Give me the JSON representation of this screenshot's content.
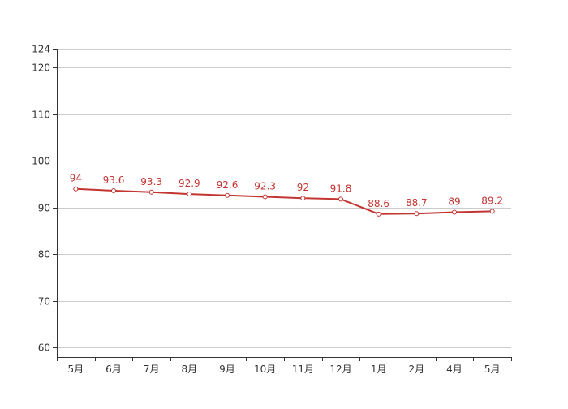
{
  "chart_data": {
    "type": "line",
    "title": "",
    "xlabel": "",
    "ylabel": "",
    "categories": [
      "5月",
      "6月",
      "7月",
      "8月",
      "9月",
      "10月",
      "11月",
      "12月",
      "1月",
      "2月",
      "4月",
      "5月"
    ],
    "series": [
      {
        "values": [
          94,
          93.6,
          93.3,
          92.9,
          92.6,
          92.3,
          92,
          91.8,
          88.6,
          88.7,
          89,
          89.2
        ],
        "color": "#c23531"
      }
    ],
    "y_ticks": [
      60,
      70,
      80,
      90,
      100,
      110,
      120,
      124
    ],
    "ylim": [
      58,
      124
    ],
    "grid": true,
    "data_labels": true,
    "legend": "none"
  }
}
